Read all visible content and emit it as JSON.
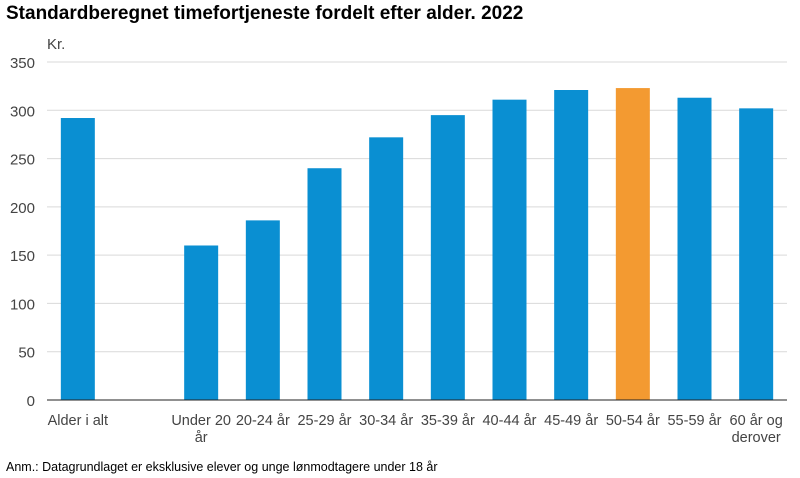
{
  "title": "Standardberegnet timefortjeneste fordelt efter alder. 2022",
  "note": "Anm.: Datagrundlaget er eksklusive elever og unge lønmodtagere under 18 år",
  "colors": {
    "bar": "#0a8fd2",
    "highlight": "#f39a31",
    "grid": "#d9d9d9",
    "axis": "#222222"
  },
  "chart_data": {
    "type": "bar",
    "ylabel": "Kr.",
    "ylim": [
      0,
      350
    ],
    "yticks": [
      0,
      50,
      100,
      150,
      200,
      250,
      300,
      350
    ],
    "grid": true,
    "highlight_category": "50-54 år",
    "categories": [
      [
        "Alder i alt"
      ],
      [],
      [
        "Under 20",
        "år"
      ],
      [
        "20-24 år"
      ],
      [
        "25-29 år"
      ],
      [
        "30-34 år"
      ],
      [
        "35-39 år"
      ],
      [
        "40-44 år"
      ],
      [
        "45-49 år"
      ],
      [
        "50-54 år"
      ],
      [
        "55-59 år"
      ],
      [
        "60 år og",
        "derover"
      ]
    ],
    "values": [
      292,
      null,
      160,
      186,
      240,
      272,
      295,
      311,
      321,
      323,
      313,
      302
    ]
  }
}
